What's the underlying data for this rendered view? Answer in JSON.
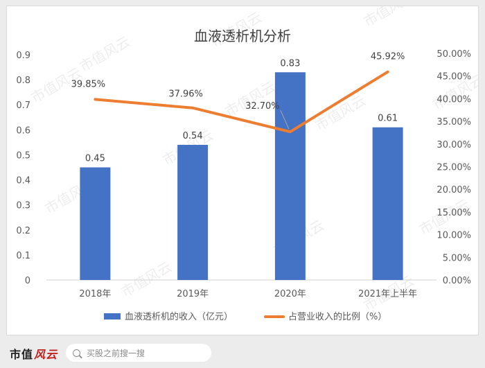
{
  "chart_data": {
    "type": "bar+line",
    "title": "血液透析机分析",
    "categories": [
      "2018年",
      "2019年",
      "2020年",
      "2021年上半年"
    ],
    "series": [
      {
        "name": "血液透析机的收入（亿元）",
        "type": "bar",
        "axis": "left",
        "values": [
          0.45,
          0.54,
          0.83,
          0.61
        ],
        "labels": [
          "0.45",
          "0.54",
          "0.83",
          "0.61"
        ],
        "color": "#4472c4"
      },
      {
        "name": "占营业收入的比例（%）",
        "type": "line",
        "axis": "right",
        "values": [
          39.85,
          37.96,
          32.7,
          45.92
        ],
        "labels": [
          "39.85%",
          "37.96%",
          "32.70%",
          "45.92%"
        ],
        "color": "#ed7d31"
      }
    ],
    "y_left": {
      "min": 0,
      "max": 0.9,
      "ticks": [
        0,
        0.1,
        0.2,
        0.3,
        0.4,
        0.5,
        0.6,
        0.7,
        0.8,
        0.9
      ],
      "tick_labels": [
        "0",
        "0.1",
        "0.2",
        "0.3",
        "0.4",
        "0.5",
        "0.6",
        "0.7",
        "0.8",
        "0.9"
      ]
    },
    "y_right": {
      "min": 0,
      "max": 50,
      "ticks": [
        0,
        5,
        10,
        15,
        20,
        25,
        30,
        35,
        40,
        45,
        50
      ],
      "tick_labels": [
        "0.00%",
        "5.00%",
        "10.00%",
        "15.00%",
        "20.00%",
        "25.00%",
        "30.00%",
        "35.00%",
        "40.00%",
        "45.00%",
        "50.00%"
      ]
    },
    "grid": false,
    "legend": "bottom"
  },
  "watermark": "市值风云",
  "footer": {
    "brand_part1": "市值",
    "brand_part2": "风云",
    "search_placeholder": "买股之前搜一搜",
    "search_icon": "search-icon"
  }
}
